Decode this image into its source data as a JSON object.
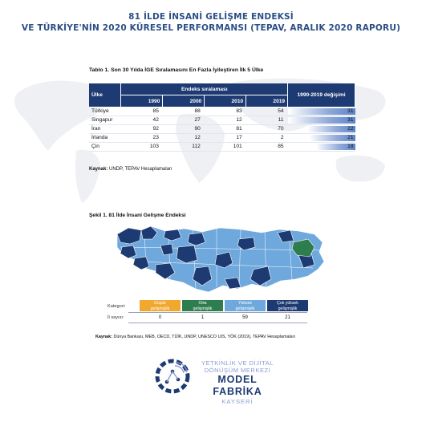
{
  "header": {
    "title_line1": "81 İLDE İNSANİ GELİŞME ENDEKSİ",
    "title_line2": "VE TÜRKİYE'NİN 2020 KÜRESEL PERFORMANSI (TEPAV, ARALIK 2020 RAPORU)"
  },
  "table": {
    "title": "Tablo 1. Son 30 Yılda İGE Sıralamasını En Fazla İyileştiren İlk 5 Ülke",
    "col_country": "Ülke",
    "col_group": "Endeks sıralaması",
    "years": [
      "1990",
      "2000",
      "2010",
      "2019"
    ],
    "col_change": "1990-2019 değişimi",
    "max_change": 31,
    "rows": [
      {
        "country": "Türkiye",
        "r1990": "85",
        "r2000": "88",
        "r2010": "83",
        "r2019": "54",
        "change": 31
      },
      {
        "country": "Singapur",
        "r1990": "42",
        "r2000": "27",
        "r2010": "12",
        "r2019": "11",
        "change": 31
      },
      {
        "country": "İran",
        "r1990": "92",
        "r2000": "90",
        "r2010": "81",
        "r2019": "70",
        "change": 22
      },
      {
        "country": "İrlanda",
        "r1990": "23",
        "r2000": "12",
        "r2010": "17",
        "r2019": "2",
        "change": 21
      },
      {
        "country": "Çin",
        "r1990": "103",
        "r2000": "112",
        "r2010": "101",
        "r2019": "85",
        "change": 18
      }
    ],
    "source_label": "Kaynak:",
    "source_text": " UNDP, TEPAV Hesaplamaları"
  },
  "figure": {
    "title": "Şekil 1. 81 İlde İnsani Gelişme Endeksi",
    "legend_label": "Kategori:",
    "count_label": "İl sayısı:",
    "categories": [
      {
        "line1": "Düşük",
        "line2": "gelişmişlik",
        "count": "0",
        "color": "#f0a830"
      },
      {
        "line1": "Orta",
        "line2": "gelişmişlik",
        "count": "1",
        "color": "#2e7d4f"
      },
      {
        "line1": "Yüksek",
        "line2": "gelişmişlik",
        "count": "59",
        "color": "#6fa8dc"
      },
      {
        "line1": "Çok yüksek",
        "line2": "gelişmişlik",
        "count": "21",
        "color": "#1d3a73"
      }
    ],
    "source_label": "Kaynak:",
    "source_text": " Dünya Bankası, MEB, OECD, TÜİK, UNDP, UNESCO UIS, YÖK (2019), TEPAV Hesaplamaları"
  },
  "logo": {
    "line1": "YETKİNLİK VE DİJİTAL",
    "line2": "DÖNÜŞÜM MERKEZİ",
    "line3": "MODEL FABRİKA",
    "line4": "KAYSERİ"
  },
  "colors": {
    "navy": "#1d3a73",
    "light_blue": "#6fa8dc",
    "green": "#2e7d4f",
    "orange": "#f0a830"
  }
}
